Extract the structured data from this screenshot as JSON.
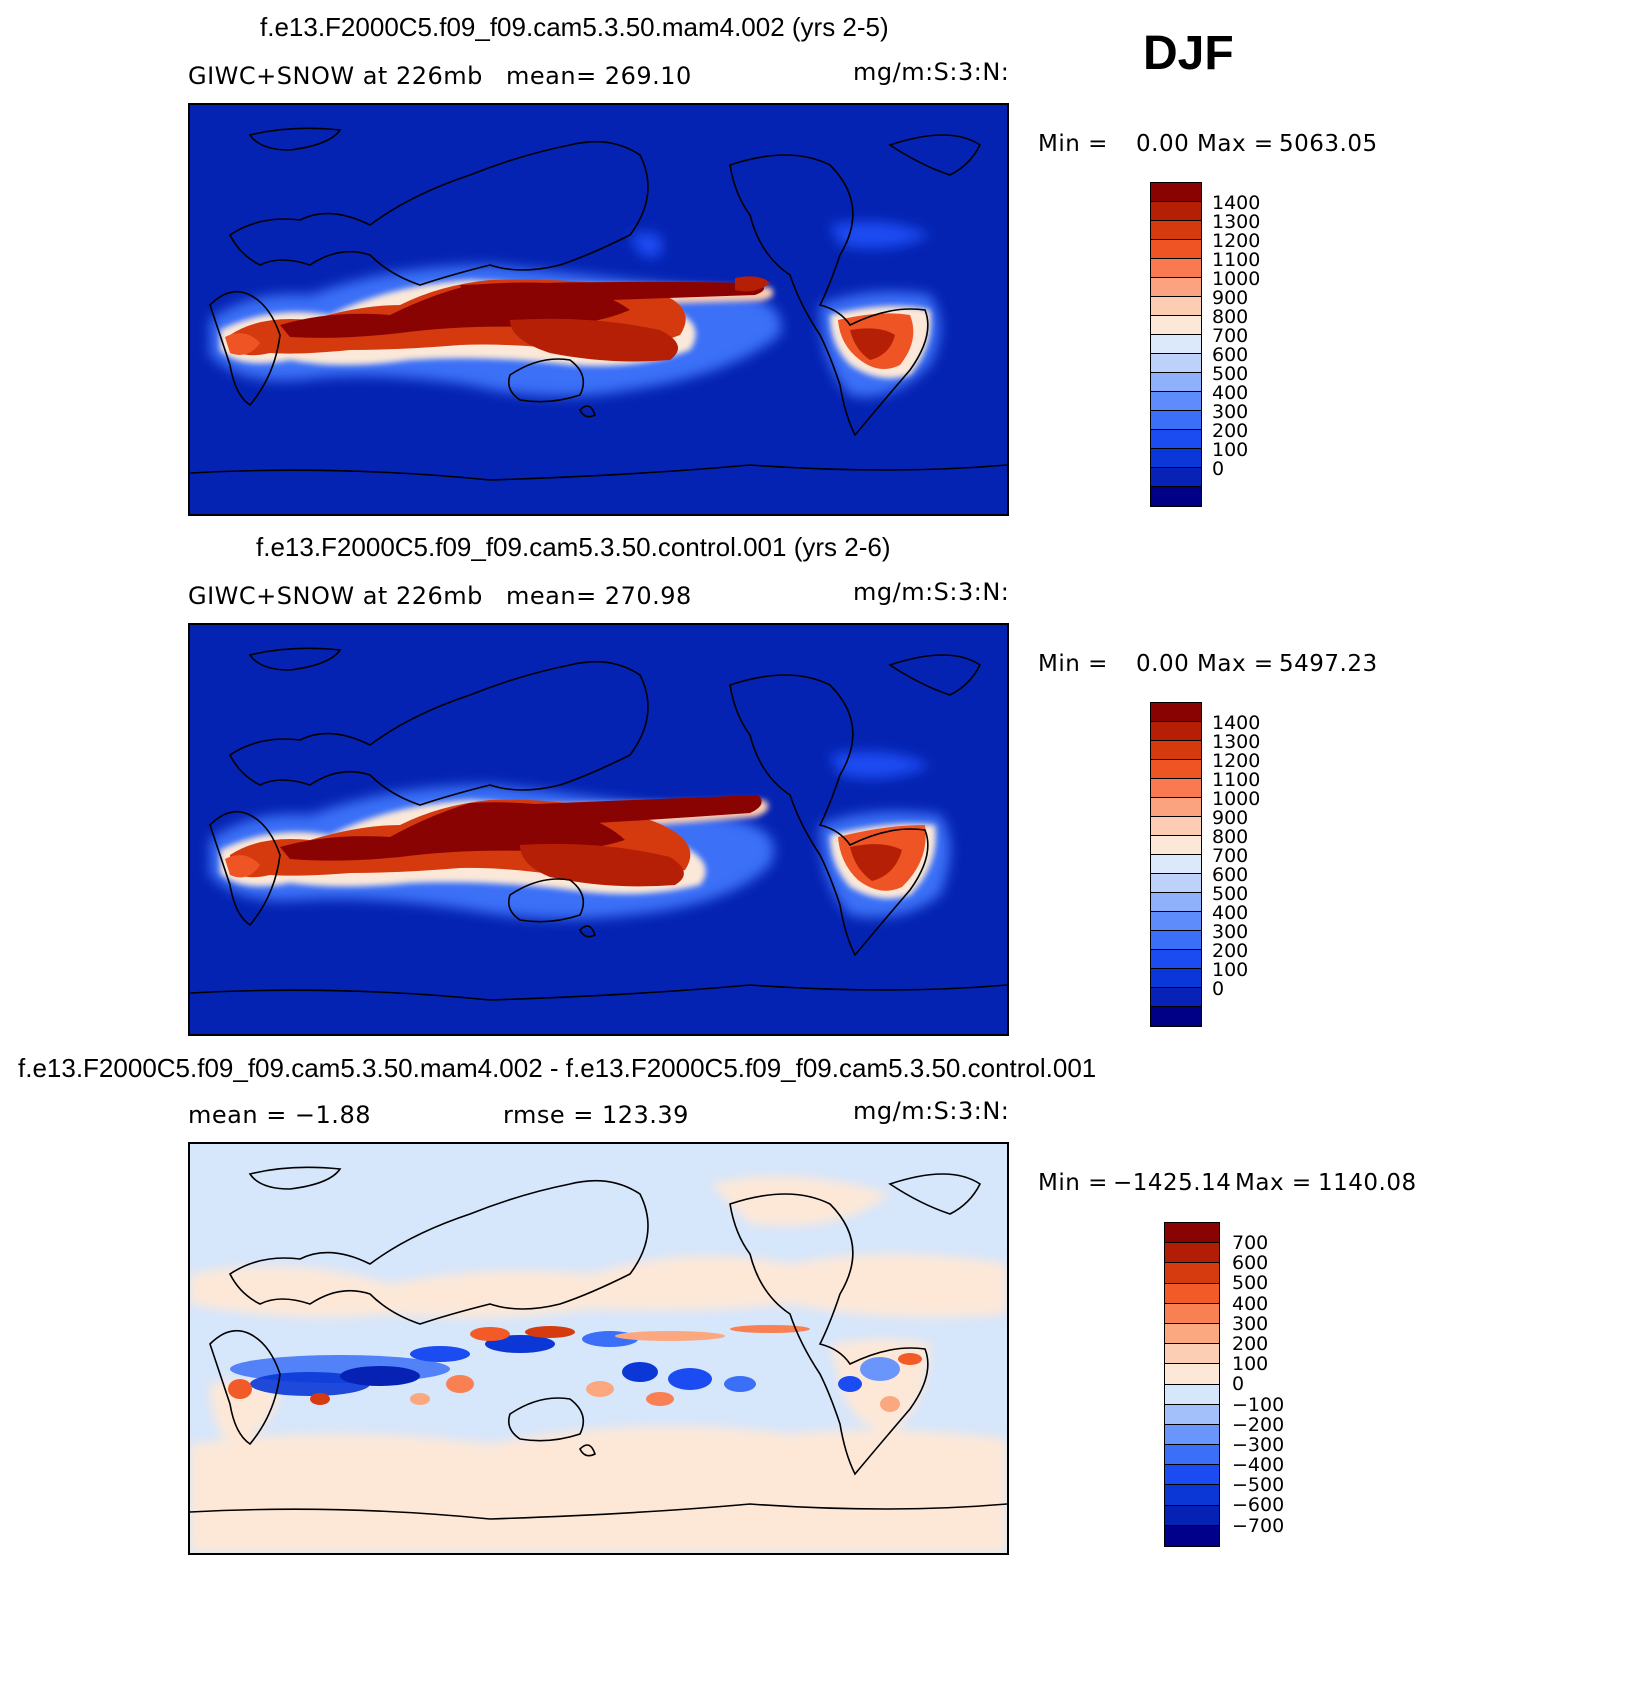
{
  "season": "DJF",
  "panels": [
    {
      "title": "f.e13.F2000C5.f09_f09.cam5.3.50.mam4.002 (yrs 2-5)",
      "left_label": "GIWC+SNOW at 226mb",
      "mid_label": "mean= 269.10",
      "units": "mg/m:S:3:N:",
      "min_label": "Min =",
      "min_value": "0.00",
      "max_label": "Max =",
      "max_value": "5063.05",
      "kind": "field"
    },
    {
      "title": "f.e13.F2000C5.f09_f09.cam5.3.50.control.001 (yrs 2-6)",
      "left_label": "GIWC+SNOW at 226mb",
      "mid_label": "mean= 270.98",
      "units": "mg/m:S:3:N:",
      "min_label": "Min =",
      "min_value": "0.00",
      "max_label": "Max =",
      "max_value": "5497.23",
      "kind": "field"
    },
    {
      "title": "f.e13.F2000C5.f09_f09.cam5.3.50.mam4.002 - f.e13.F2000C5.f09_f09.cam5.3.50.control.001",
      "left_label": "mean =  −1.88",
      "mid_label": "rmse = 123.39",
      "units": "mg/m:S:3:N:",
      "min_label": "Min =",
      "min_value": "−1425.14",
      "max_label": "Max =",
      "max_value": "1140.08",
      "kind": "diff"
    }
  ],
  "chart_data": [
    {
      "type": "heatmap",
      "title": "f.e13.F2000C5.f09_f09.cam5.3.50.mam4.002 (yrs 2-5)",
      "variable": "GIWC+SNOW at 226mb",
      "units": "mg/m:S:3:N:",
      "mean": 269.1,
      "min": 0.0,
      "max": 5063.05,
      "colorbar_levels": [
        0,
        100,
        200,
        300,
        400,
        500,
        600,
        700,
        800,
        900,
        1000,
        1100,
        1200,
        1300,
        1400
      ],
      "colorbar_colors": [
        "#000087",
        "#0822b8",
        "#0b37d9",
        "#1a4cf2",
        "#3b6ff7",
        "#5e8cfa",
        "#8fb0fb",
        "#bcd2fb",
        "#dbe9fb",
        "#fbe8d8",
        "#fcccb3",
        "#fba27e",
        "#f97a50",
        "#ef5425",
        "#d53a0f",
        "#b51f05",
        "#8a0303"
      ]
    },
    {
      "type": "heatmap",
      "title": "f.e13.F2000C5.f09_f09.cam5.3.50.control.001 (yrs 2-6)",
      "variable": "GIWC+SNOW at 226mb",
      "units": "mg/m:S:3:N:",
      "mean": 270.98,
      "min": 0.0,
      "max": 5497.23,
      "colorbar_levels": [
        0,
        100,
        200,
        300,
        400,
        500,
        600,
        700,
        800,
        900,
        1000,
        1100,
        1200,
        1300,
        1400
      ],
      "colorbar_colors": [
        "#000087",
        "#0822b8",
        "#0b37d9",
        "#1a4cf2",
        "#3b6ff7",
        "#5e8cfa",
        "#8fb0fb",
        "#bcd2fb",
        "#dbe9fb",
        "#fbe8d8",
        "#fcccb3",
        "#fba27e",
        "#f97a50",
        "#ef5425",
        "#d53a0f",
        "#b51f05",
        "#8a0303"
      ]
    },
    {
      "type": "heatmap",
      "title": "f.e13.F2000C5.f09_f09.cam5.3.50.mam4.002 - f.e13.F2000C5.f09_f09.cam5.3.50.control.001",
      "units": "mg/m:S:3:N:",
      "mean": -1.88,
      "rmse": 123.39,
      "min": -1425.14,
      "max": 1140.08,
      "colorbar_levels": [
        "−700",
        "−600",
        "−500",
        "−400",
        "−300",
        "−200",
        "−100",
        "0",
        "100",
        "200",
        "300",
        "400",
        "500",
        "600",
        "700"
      ],
      "colorbar_colors": [
        "#00008a",
        "#0522b5",
        "#0a37d6",
        "#1a4cf2",
        "#3b6ff7",
        "#6a95fa",
        "#a3c0fb",
        "#d6e6fb",
        "#fde8d8",
        "#fccfb5",
        "#fba880",
        "#f98052",
        "#f25a28",
        "#d63b10",
        "#b21e05",
        "#8a0303"
      ]
    }
  ]
}
